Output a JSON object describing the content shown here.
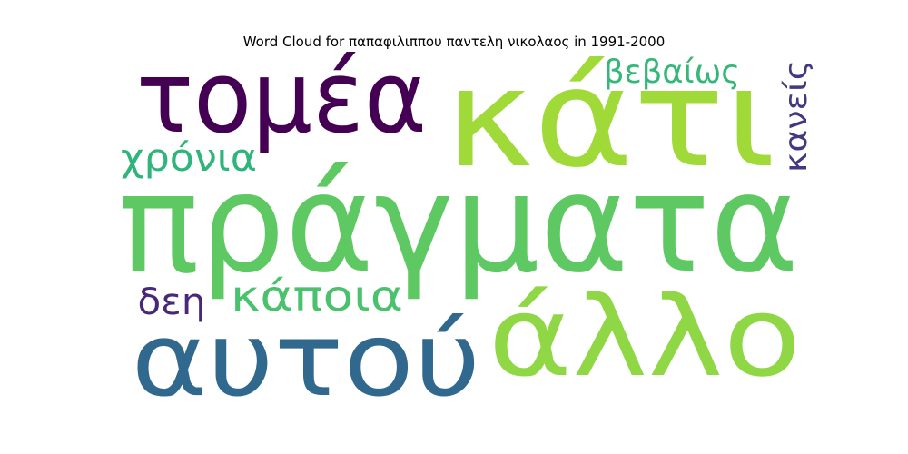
{
  "title": "Word Cloud for παπαφιλιππου παντελη νικολαος in 1991-2000",
  "words": [
    {
      "text": "πράγματα",
      "color": "#5ec962"
    },
    {
      "text": "κάτι",
      "color": "#a0da39"
    },
    {
      "text": "τομέα",
      "color": "#440154"
    },
    {
      "text": "αυτού",
      "color": "#31688e"
    },
    {
      "text": "άλλο",
      "color": "#8fd744"
    },
    {
      "text": "κάποια",
      "color": "#4ac16d"
    },
    {
      "text": "χρόνια",
      "color": "#2fb47c"
    },
    {
      "text": "βεβαίως",
      "color": "#35b779"
    },
    {
      "text": "δεη",
      "color": "#482878"
    },
    {
      "text": "κανείς",
      "color": "#453781"
    }
  ]
}
